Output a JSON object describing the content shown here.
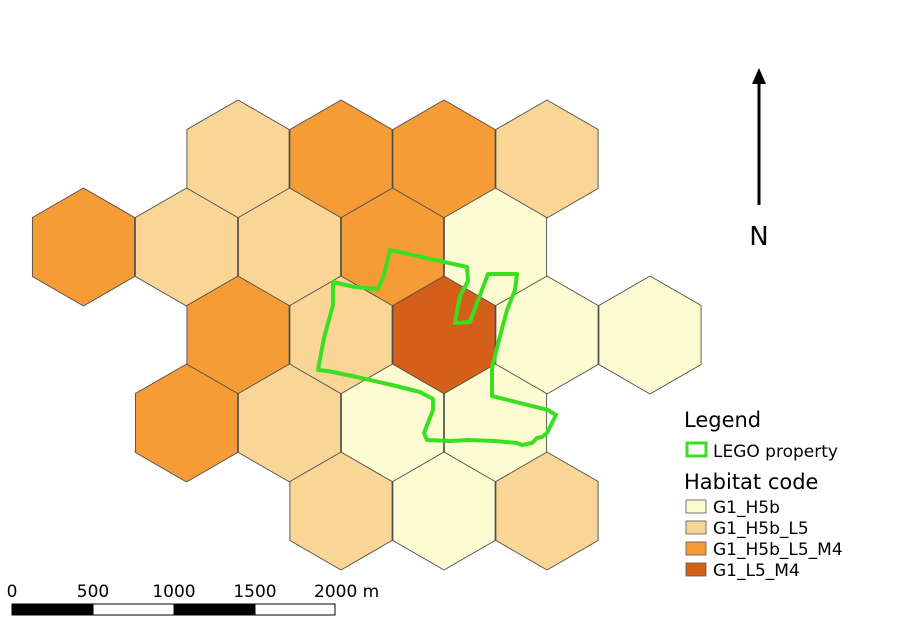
{
  "map": {
    "legend": {
      "title": "Legend",
      "property_label": "LEGO property",
      "property_color": "#39e01f",
      "habitat_title": "Habitat code",
      "habitat_classes": [
        {
          "label": "G1_H5b",
          "color": "#fdfbd2"
        },
        {
          "label": "G1_H5b_L5",
          "color": "#f9d596"
        },
        {
          "label": "G1_H5b_L5_M4",
          "color": "#f59c37"
        },
        {
          "label": "G1_L5_M4",
          "color": "#d45f18"
        }
      ]
    },
    "north_arrow": {
      "label": "N"
    },
    "scale_bar": {
      "tick_labels": [
        "0",
        "500",
        "1000",
        "1500",
        "2000 m"
      ]
    },
    "hex_cells": [
      {
        "col": 0,
        "row": 0,
        "habitat": "G1_H5b_L5"
      },
      {
        "col": 1,
        "row": 0,
        "habitat": "G1_H5b_L5_M4"
      },
      {
        "col": 2,
        "row": 0,
        "habitat": "G1_H5b_L5_M4"
      },
      {
        "col": 3,
        "row": 0,
        "habitat": "G1_H5b_L5"
      },
      {
        "col": -1,
        "row": 1,
        "habitat": "G1_H5b_L5_M4"
      },
      {
        "col": 0,
        "row": 1,
        "habitat": "G1_H5b_L5"
      },
      {
        "col": 1,
        "row": 1,
        "habitat": "G1_H5b_L5"
      },
      {
        "col": 2,
        "row": 1,
        "habitat": "G1_H5b_L5_M4"
      },
      {
        "col": 3,
        "row": 1,
        "habitat": "G1_H5b"
      },
      {
        "col": 0,
        "row": 2,
        "habitat": "G1_H5b_L5_M4"
      },
      {
        "col": 1,
        "row": 2,
        "habitat": "G1_H5b_L5"
      },
      {
        "col": 2,
        "row": 2,
        "habitat": "G1_L5_M4"
      },
      {
        "col": 3,
        "row": 2,
        "habitat": "G1_H5b"
      },
      {
        "col": 4,
        "row": 2,
        "habitat": "G1_H5b"
      },
      {
        "col": 0,
        "row": 3,
        "habitat": "G1_H5b_L5_M4"
      },
      {
        "col": 1,
        "row": 3,
        "habitat": "G1_H5b_L5"
      },
      {
        "col": 2,
        "row": 3,
        "habitat": "G1_H5b"
      },
      {
        "col": 3,
        "row": 3,
        "habitat": "G1_H5b"
      },
      {
        "col": 1,
        "row": 4,
        "habitat": "G1_H5b_L5"
      },
      {
        "col": 2,
        "row": 4,
        "habitat": "G1_H5b"
      },
      {
        "col": 3,
        "row": 4,
        "habitat": "G1_H5b_L5"
      }
    ]
  }
}
